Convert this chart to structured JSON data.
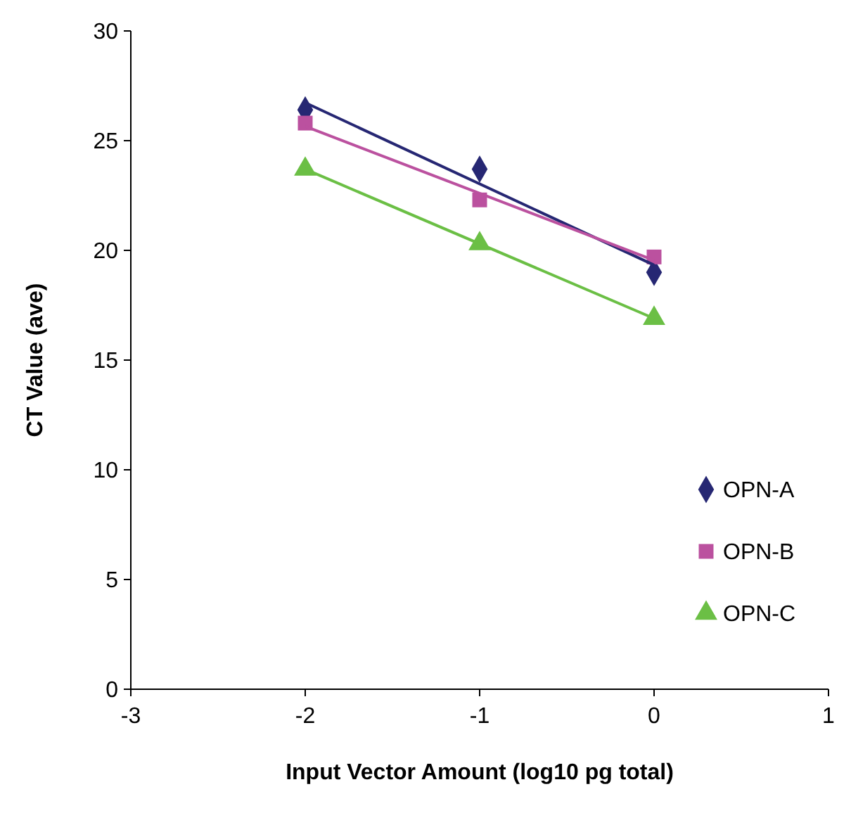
{
  "chart_data": {
    "type": "scatter",
    "xlabel": "Input Vector Amount (log10 pg total)",
    "ylabel": "CT Value (ave)",
    "xlim": [
      -3,
      1
    ],
    "xticks": [
      -3,
      -2,
      -1,
      0,
      1
    ],
    "ylim": [
      0,
      30
    ],
    "yticks": [
      0,
      5,
      10,
      15,
      20,
      25,
      30
    ],
    "grid": false,
    "legend": "bottom right",
    "series": [
      {
        "name": "OPN-A",
        "color": "#262773",
        "marker": "diamond",
        "x": [
          -2,
          -1,
          0
        ],
        "values": [
          26.4,
          23.7,
          19.0
        ]
      },
      {
        "name": "OPN-B",
        "color": "#bb519f",
        "marker": "square",
        "x": [
          -2,
          -1,
          0
        ],
        "values": [
          25.8,
          22.3,
          19.7
        ]
      },
      {
        "name": "OPN-C",
        "color": "#6bbf45",
        "marker": "triangle",
        "x": [
          -2,
          -1,
          0
        ],
        "values": [
          23.7,
          20.3,
          16.9
        ]
      },
      {
        "type": "line",
        "color": "#262773",
        "marker": "none",
        "x": [
          -2,
          0
        ],
        "values": [
          26.73,
          19.33
        ]
      },
      {
        "type": "line",
        "color": "#bb519f",
        "marker": "none",
        "x": [
          -2,
          0
        ],
        "values": [
          25.65,
          19.55
        ]
      },
      {
        "type": "line",
        "color": "#6bbf45",
        "marker": "none",
        "x": [
          -2,
          0
        ],
        "values": [
          23.7,
          16.9
        ]
      }
    ]
  }
}
